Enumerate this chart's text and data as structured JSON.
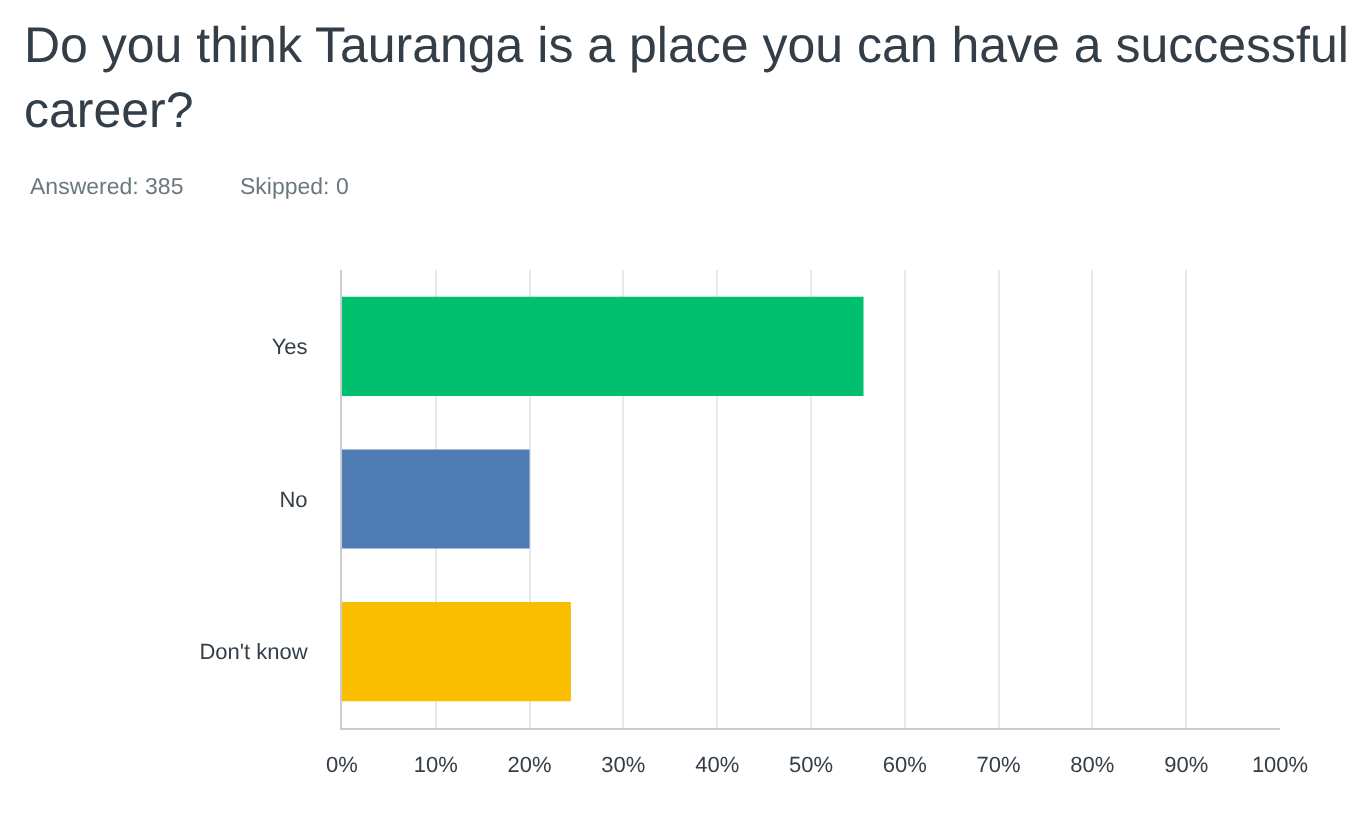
{
  "chart_data": {
    "type": "bar",
    "orientation": "horizontal",
    "title": "Do you think Tauranga is a place you can have a successful career?",
    "subtitle": "Answered: 385",
    "annotations": [
      "Skipped: 0"
    ],
    "categories": [
      "Yes",
      "No",
      "Don't know"
    ],
    "values": [
      55.6,
      20.0,
      24.4
    ],
    "colors": [
      "#00bf6f",
      "#507cb6",
      "#f9be00"
    ],
    "xlim": [
      0,
      100
    ],
    "xticks": [
      {
        "value": 0,
        "label": "0%"
      },
      {
        "value": 10,
        "label": "10%"
      },
      {
        "value": 20,
        "label": "20%"
      },
      {
        "value": 30,
        "label": "30%"
      },
      {
        "value": 40,
        "label": "40%"
      },
      {
        "value": 50,
        "label": "50%"
      },
      {
        "value": 60,
        "label": "60%"
      },
      {
        "value": 70,
        "label": "70%"
      },
      {
        "value": 80,
        "label": "80%"
      },
      {
        "value": 90,
        "label": "90%"
      },
      {
        "value": 100,
        "label": "100%"
      }
    ],
    "grid": "x"
  }
}
